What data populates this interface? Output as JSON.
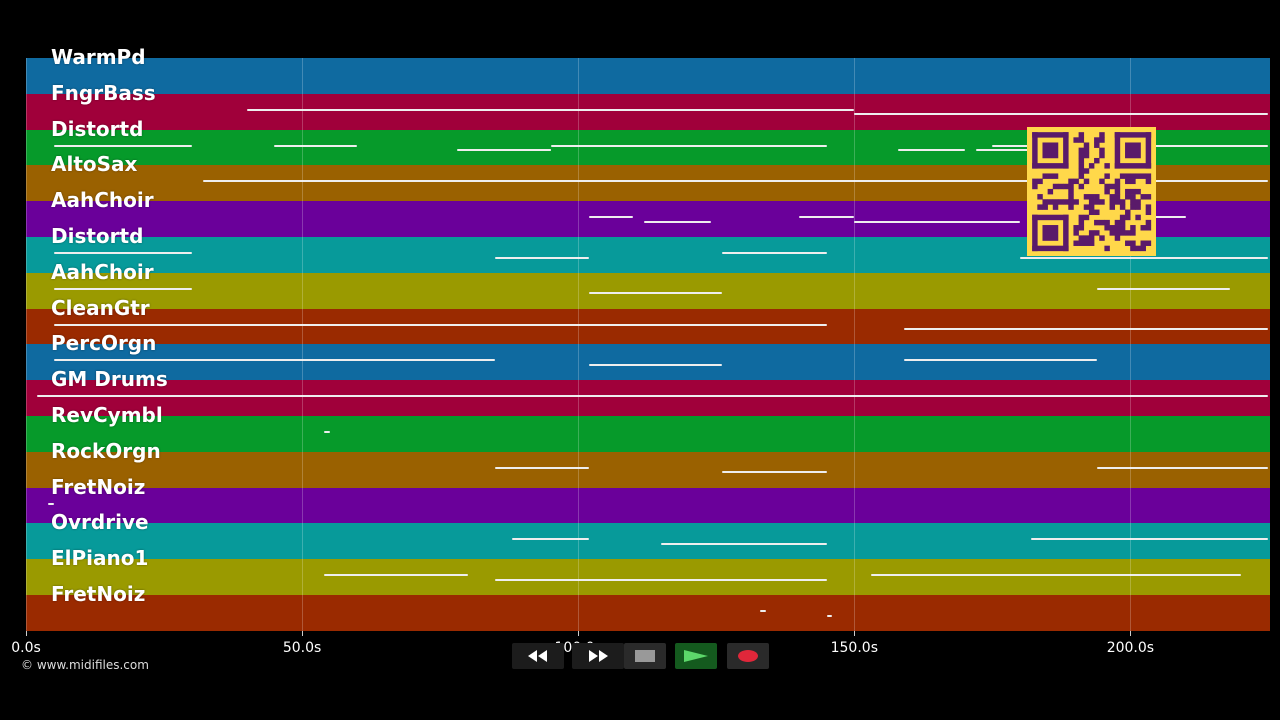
{
  "tracks": [
    {
      "label": "WarmPd",
      "color": "#0f6aa0"
    },
    {
      "label": "FngrBass",
      "color": "#a0003a"
    },
    {
      "label": "Distortd",
      "color": "#069a2a"
    },
    {
      "label": "AltoSax",
      "color": "#9a6100"
    },
    {
      "label": "AahChoir",
      "color": "#6a009a"
    },
    {
      "label": "Distortd",
      "color": "#079a9a"
    },
    {
      "label": "AahChoir",
      "color": "#9a9a00"
    },
    {
      "label": "CleanGtr",
      "color": "#9a2a00"
    },
    {
      "label": "PercOrgn",
      "color": "#0f6aa0"
    },
    {
      "label": "GM Drums",
      "color": "#a0003a"
    },
    {
      "label": "RevCymbl",
      "color": "#069a2a"
    },
    {
      "label": "RockOrgn",
      "color": "#9a6100"
    },
    {
      "label": "FretNoiz",
      "color": "#6a009a"
    },
    {
      "label": "Ovrdrive",
      "color": "#079a9a"
    },
    {
      "label": "ElPiano1",
      "color": "#9a9a00"
    },
    {
      "label": "FretNoiz",
      "color": "#9a2a00"
    }
  ],
  "timeline": {
    "unit": "s",
    "ticks": [
      {
        "value": 0,
        "label": "0.0s"
      },
      {
        "value": 50,
        "label": "50.0s"
      },
      {
        "value": 100,
        "label": "100.0s"
      },
      {
        "value": 150,
        "label": "150.0s"
      },
      {
        "value": 200,
        "label": "200.0s"
      }
    ],
    "range": [
      0,
      225
    ]
  },
  "copyright": "© www.midifiles.com",
  "transport": {
    "rewind_icon": "rewind-icon",
    "fast_forward_icon": "fast-forward-icon",
    "stop_icon": "stop-icon",
    "play_icon": "play-icon",
    "record_icon": "record-icon"
  },
  "qr_code_icon": "qr-code-icon"
}
